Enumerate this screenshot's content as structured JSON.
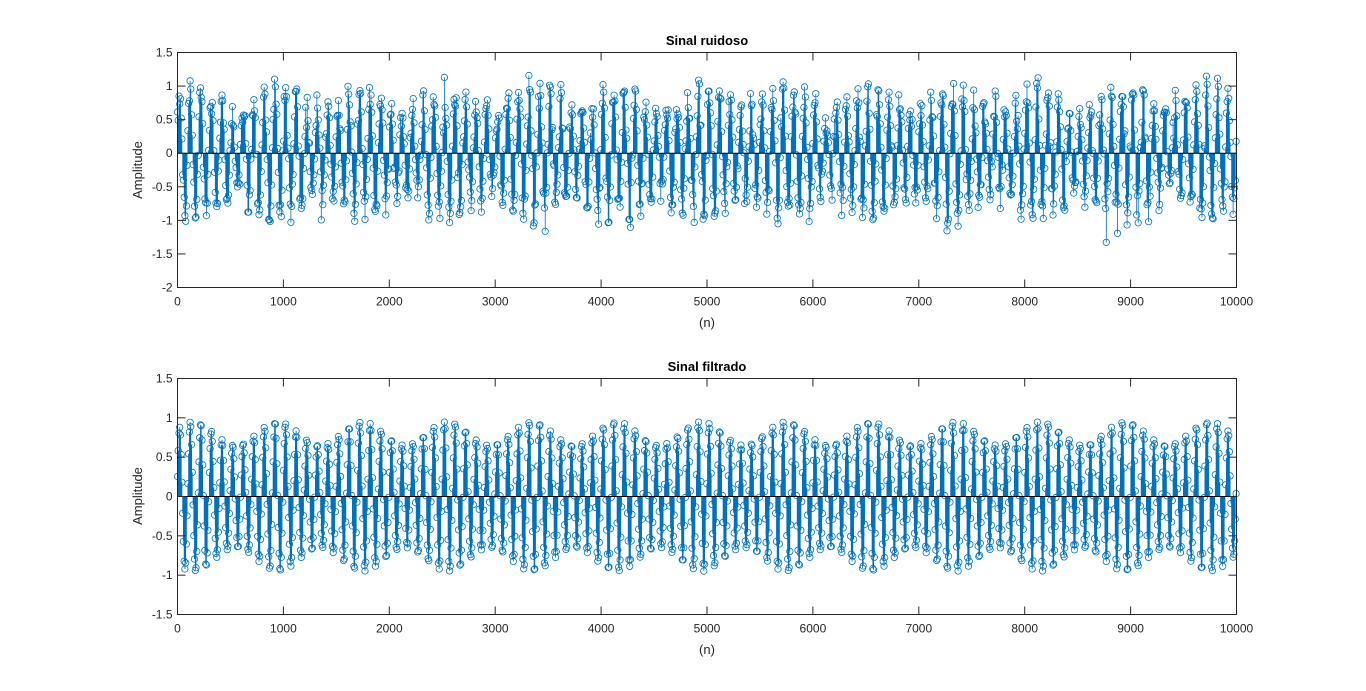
{
  "figure": {
    "background": "#ffffff",
    "accent": "#0072BD",
    "axis_color": "#262626"
  },
  "chart_data": [
    {
      "type": "stem",
      "title": "Sinal ruidoso",
      "xlabel": "(n)",
      "ylabel": "Amplitude",
      "xlim": [
        0,
        10000
      ],
      "ylim": [
        -2,
        1.5
      ],
      "xticks": [
        0,
        1000,
        2000,
        3000,
        4000,
        5000,
        6000,
        7000,
        8000,
        9000,
        10000
      ],
      "yticks": [
        -2,
        -1.5,
        -1,
        -0.5,
        0,
        0.5,
        1,
        1.5
      ],
      "xtick_labels": [
        "0",
        "1000",
        "2000",
        "3000",
        "4000",
        "5000",
        "6000",
        "7000",
        "8000",
        "9000",
        "10000"
      ],
      "ytick_labels": [
        "-2",
        "-1.5",
        "-1",
        "-0.5",
        "0",
        "0.5",
        "1",
        "1.5"
      ],
      "marker": "circle",
      "color": "#0072BD",
      "baseline": 0,
      "signal": {
        "samples": 10000,
        "fast_amplitude": 0.8,
        "fast_period": 100,
        "envelope_amplitude": 0.15,
        "envelope_period": 800,
        "noise_std": 0.13
      },
      "approx_range": [
        -1.55,
        1.42
      ]
    },
    {
      "type": "stem",
      "title": "Sinal filtrado",
      "xlabel": "(n)",
      "ylabel": "Amplitude",
      "xlim": [
        0,
        10000
      ],
      "ylim": [
        -1.5,
        1.5
      ],
      "xticks": [
        0,
        1000,
        2000,
        3000,
        4000,
        5000,
        6000,
        7000,
        8000,
        9000,
        10000
      ],
      "yticks": [
        -1.5,
        -1,
        -0.5,
        0,
        0.5,
        1,
        1.5
      ],
      "xtick_labels": [
        "0",
        "1000",
        "2000",
        "3000",
        "4000",
        "5000",
        "6000",
        "7000",
        "8000",
        "9000",
        "10000"
      ],
      "ytick_labels": [
        "-1.5",
        "-1",
        "-0.5",
        "0",
        "0.5",
        "1",
        "1.5"
      ],
      "marker": "circle",
      "color": "#0072BD",
      "baseline": 0,
      "signal": {
        "samples": 10000,
        "fast_amplitude": 0.8,
        "fast_period": 100,
        "envelope_amplitude": 0.15,
        "envelope_period": 800,
        "noise_std": 0.0
      },
      "approx_range": [
        -1.15,
        1.0
      ]
    }
  ]
}
